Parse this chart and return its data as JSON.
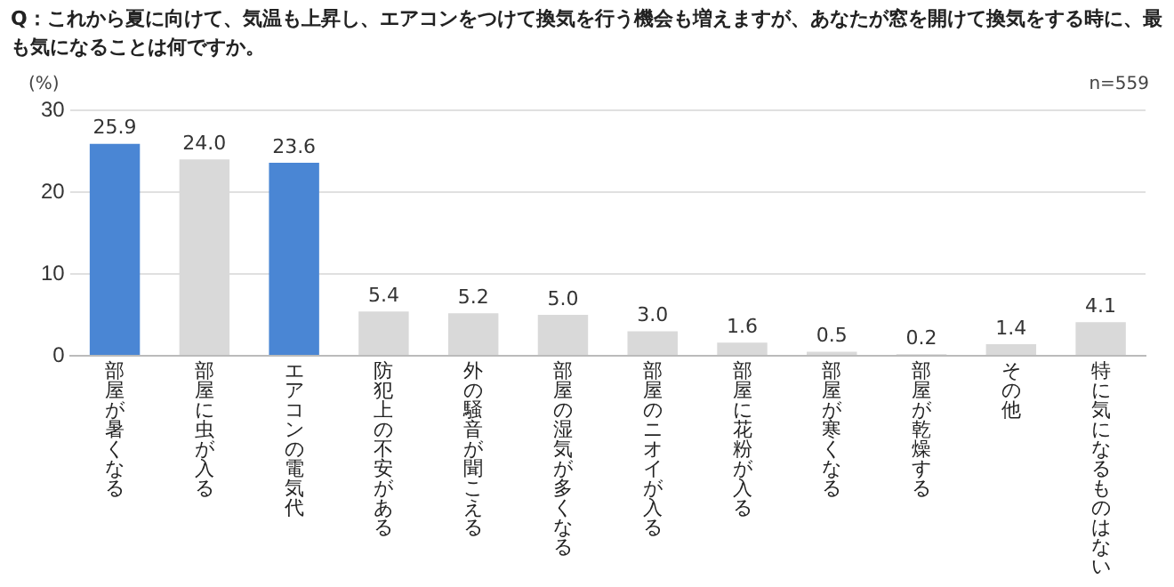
{
  "chart_data": {
    "type": "bar",
    "title": "Q：これから夏に向けて、気温も上昇し、エアコンをつけて換気を行う機会も増えますが、あなたが窓を開けて換気をする時に、最も気になることは何ですか。",
    "ylabel": "(%)",
    "annotations": [
      "n=559"
    ],
    "categories": [
      "部屋が暑くなる",
      "部屋に虫が入る",
      "エアコンの電気代",
      "防犯上の不安がある",
      "外の騒音が聞こえる",
      "部屋の湿気が多くなる",
      "部屋のニオイが入る",
      "部屋に花粉が入る",
      "部屋が寒くなる",
      "部屋が乾燥する",
      "その他",
      "特に気になるものはない"
    ],
    "values": [
      25.9,
      24.0,
      23.6,
      5.4,
      5.2,
      5.0,
      3.0,
      1.6,
      0.5,
      0.2,
      1.4,
      4.1
    ],
    "colors": [
      "#4a86d4",
      "#d9d9d9",
      "#4a86d4",
      "#d9d9d9",
      "#d9d9d9",
      "#d9d9d9",
      "#d9d9d9",
      "#d9d9d9",
      "#d9d9d9",
      "#d9d9d9",
      "#d9d9d9",
      "#d9d9d9"
    ],
    "ylim": [
      0,
      30
    ],
    "yticks": [
      0,
      10,
      20,
      30
    ],
    "value_labels": [
      "25.9",
      "24.0",
      "23.6",
      "5.4",
      "5.2",
      "5.0",
      "3.0",
      "1.6",
      "0.5",
      "0.2",
      "1.4",
      "4.1"
    ],
    "grid": "y"
  }
}
